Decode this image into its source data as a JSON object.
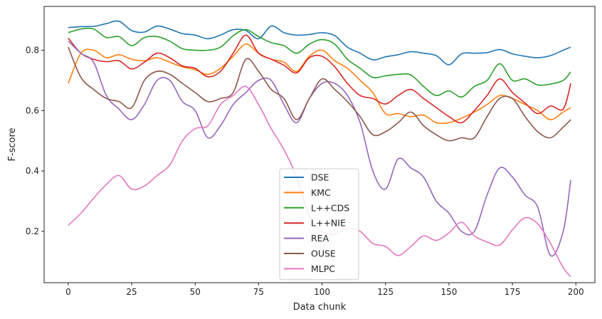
{
  "chart_data": {
    "type": "line",
    "xlabel": "Data chunk",
    "ylabel": "F-score",
    "xlim": [
      -9.5,
      207.5
    ],
    "ylim": [
      0.03,
      0.945
    ],
    "x_ticks": [
      0,
      25,
      50,
      75,
      100,
      125,
      150,
      175,
      200
    ],
    "y_ticks": [
      0.2,
      0.4,
      0.6,
      0.8
    ],
    "grid": false,
    "legend": "lower-center",
    "series": [
      {
        "name": "DSE",
        "color": "#1f77b4",
        "x": [
          0,
          5,
          10,
          15,
          20,
          25,
          30,
          35,
          40,
          45,
          50,
          55,
          60,
          65,
          70,
          75,
          80,
          85,
          90,
          95,
          100,
          105,
          110,
          115,
          120,
          125,
          130,
          135,
          140,
          145,
          150,
          155,
          160,
          165,
          170,
          175,
          180,
          185,
          190,
          195,
          198
        ],
        "y": [
          0.875,
          0.878,
          0.879,
          0.888,
          0.896,
          0.865,
          0.86,
          0.88,
          0.87,
          0.855,
          0.85,
          0.838,
          0.85,
          0.868,
          0.865,
          0.838,
          0.88,
          0.858,
          0.85,
          0.852,
          0.858,
          0.848,
          0.81,
          0.79,
          0.768,
          0.778,
          0.785,
          0.795,
          0.79,
          0.782,
          0.752,
          0.788,
          0.79,
          0.792,
          0.802,
          0.788,
          0.78,
          0.775,
          0.782,
          0.8,
          0.81
        ]
      },
      {
        "name": "KMC",
        "color": "#ff7f0e",
        "x": [
          0,
          5,
          10,
          15,
          20,
          25,
          30,
          35,
          40,
          45,
          50,
          55,
          60,
          65,
          70,
          75,
          80,
          85,
          90,
          95,
          100,
          105,
          110,
          115,
          120,
          125,
          130,
          135,
          140,
          145,
          150,
          155,
          160,
          165,
          170,
          175,
          180,
          185,
          190,
          195,
          198
        ],
        "y": [
          0.69,
          0.79,
          0.8,
          0.775,
          0.785,
          0.77,
          0.765,
          0.775,
          0.76,
          0.745,
          0.735,
          0.72,
          0.74,
          0.78,
          0.82,
          0.79,
          0.77,
          0.76,
          0.73,
          0.78,
          0.8,
          0.765,
          0.74,
          0.7,
          0.66,
          0.59,
          0.59,
          0.58,
          0.585,
          0.56,
          0.56,
          0.575,
          0.595,
          0.62,
          0.65,
          0.64,
          0.62,
          0.6,
          0.57,
          0.595,
          0.61
        ]
      },
      {
        "name": "L++CDS",
        "color": "#2ca02c",
        "x": [
          0,
          5,
          10,
          15,
          20,
          25,
          30,
          35,
          40,
          45,
          50,
          55,
          60,
          65,
          70,
          75,
          80,
          85,
          90,
          95,
          100,
          105,
          110,
          115,
          120,
          125,
          130,
          135,
          140,
          145,
          150,
          155,
          160,
          165,
          170,
          175,
          180,
          185,
          190,
          195,
          198
        ],
        "y": [
          0.858,
          0.87,
          0.87,
          0.842,
          0.845,
          0.815,
          0.842,
          0.845,
          0.83,
          0.805,
          0.8,
          0.8,
          0.81,
          0.848,
          0.868,
          0.845,
          0.825,
          0.815,
          0.79,
          0.82,
          0.835,
          0.82,
          0.77,
          0.74,
          0.71,
          0.715,
          0.72,
          0.718,
          0.68,
          0.65,
          0.665,
          0.645,
          0.68,
          0.7,
          0.755,
          0.7,
          0.705,
          0.685,
          0.688,
          0.7,
          0.728
        ]
      },
      {
        "name": "L++NIE",
        "color": "#d62728",
        "x": [
          0,
          5,
          10,
          15,
          20,
          25,
          30,
          35,
          40,
          45,
          50,
          55,
          60,
          65,
          70,
          75,
          80,
          85,
          90,
          95,
          100,
          105,
          110,
          115,
          120,
          125,
          130,
          135,
          140,
          145,
          150,
          155,
          160,
          165,
          170,
          175,
          180,
          185,
          190,
          195,
          198
        ],
        "y": [
          0.84,
          0.79,
          0.77,
          0.762,
          0.765,
          0.738,
          0.76,
          0.79,
          0.775,
          0.748,
          0.74,
          0.712,
          0.73,
          0.79,
          0.85,
          0.79,
          0.77,
          0.75,
          0.725,
          0.775,
          0.78,
          0.745,
          0.69,
          0.65,
          0.64,
          0.622,
          0.65,
          0.67,
          0.64,
          0.61,
          0.58,
          0.56,
          0.6,
          0.65,
          0.705,
          0.66,
          0.625,
          0.59,
          0.615,
          0.605,
          0.69
        ]
      },
      {
        "name": "REA",
        "color": "#9467bd",
        "x": [
          0,
          5,
          10,
          15,
          20,
          25,
          30,
          35,
          40,
          45,
          50,
          55,
          60,
          65,
          70,
          75,
          80,
          85,
          90,
          95,
          100,
          105,
          110,
          115,
          120,
          125,
          130,
          135,
          140,
          145,
          150,
          155,
          160,
          165,
          170,
          175,
          180,
          185,
          190,
          195,
          198
        ],
        "y": [
          0.83,
          0.79,
          0.76,
          0.65,
          0.605,
          0.57,
          0.62,
          0.7,
          0.7,
          0.63,
          0.6,
          0.51,
          0.55,
          0.62,
          0.66,
          0.7,
          0.7,
          0.62,
          0.56,
          0.64,
          0.69,
          0.69,
          0.65,
          0.56,
          0.4,
          0.34,
          0.44,
          0.41,
          0.38,
          0.3,
          0.26,
          0.2,
          0.2,
          0.32,
          0.41,
          0.38,
          0.32,
          0.28,
          0.12,
          0.2,
          0.37
        ]
      },
      {
        "name": "OUSE",
        "color": "#8c564b",
        "x": [
          0,
          5,
          10,
          15,
          20,
          25,
          30,
          35,
          40,
          45,
          50,
          55,
          60,
          65,
          70,
          75,
          80,
          85,
          90,
          95,
          100,
          105,
          110,
          115,
          120,
          125,
          130,
          135,
          140,
          145,
          150,
          155,
          160,
          165,
          170,
          175,
          180,
          185,
          190,
          195,
          198
        ],
        "y": [
          0.81,
          0.71,
          0.67,
          0.64,
          0.63,
          0.61,
          0.7,
          0.73,
          0.72,
          0.69,
          0.66,
          0.63,
          0.64,
          0.66,
          0.77,
          0.73,
          0.67,
          0.64,
          0.57,
          0.64,
          0.705,
          0.67,
          0.63,
          0.58,
          0.52,
          0.53,
          0.56,
          0.595,
          0.55,
          0.52,
          0.5,
          0.51,
          0.51,
          0.58,
          0.64,
          0.64,
          0.58,
          0.53,
          0.51,
          0.545,
          0.57
        ]
      },
      {
        "name": "MLPC",
        "color": "#e377c2",
        "x": [
          0,
          5,
          10,
          15,
          20,
          25,
          30,
          35,
          40,
          45,
          50,
          55,
          60,
          65,
          70,
          75,
          80,
          85,
          90,
          95,
          100,
          105,
          110,
          115,
          120,
          125,
          130,
          135,
          140,
          145,
          150,
          155,
          160,
          165,
          170,
          175,
          180,
          185,
          190,
          195,
          198
        ],
        "y": [
          0.22,
          0.26,
          0.31,
          0.355,
          0.385,
          0.34,
          0.35,
          0.385,
          0.42,
          0.5,
          0.54,
          0.55,
          0.62,
          0.65,
          0.68,
          0.62,
          0.54,
          0.47,
          0.38,
          0.25,
          0.2,
          0.19,
          0.21,
          0.2,
          0.16,
          0.15,
          0.12,
          0.15,
          0.185,
          0.17,
          0.195,
          0.23,
          0.185,
          0.165,
          0.155,
          0.205,
          0.245,
          0.225,
          0.16,
          0.08,
          0.05
        ]
      }
    ]
  }
}
